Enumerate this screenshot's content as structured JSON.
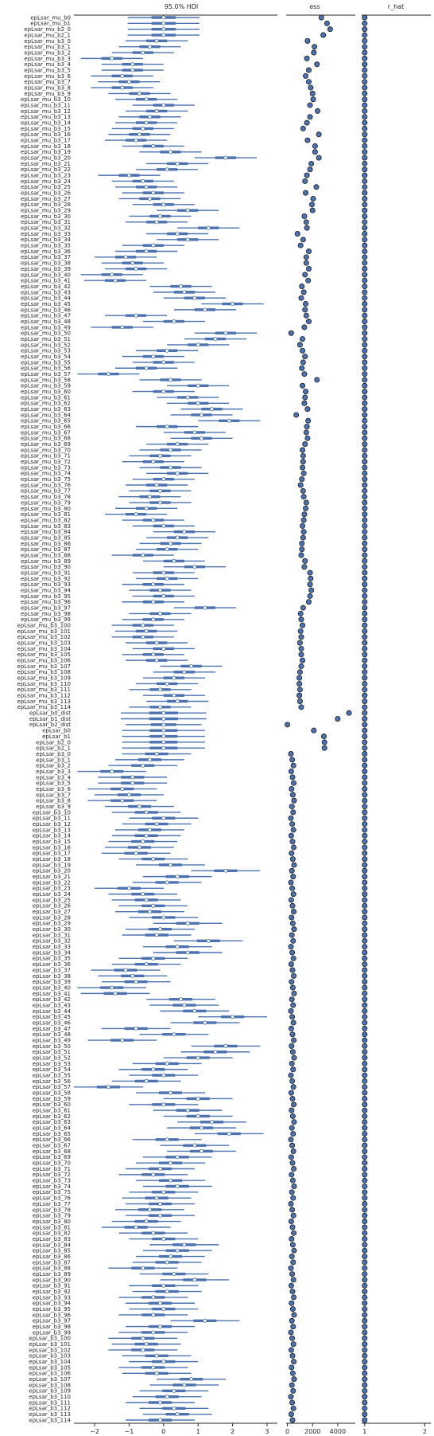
{
  "panels": {
    "hdi_title": "95.0% HDI",
    "ess_title": "ess",
    "rhat_title": "r_hat"
  },
  "axes": {
    "hdi": {
      "xlim": [
        -2.6,
        3.3
      ],
      "ticks": [
        -2,
        -1,
        0,
        1,
        2,
        3
      ]
    },
    "ess": {
      "xlim": [
        -100,
        5400
      ],
      "ticks": [
        0,
        2000,
        4000
      ]
    },
    "rhat": {
      "xlim": [
        0.95,
        2.1
      ],
      "ticks": [
        1,
        2
      ]
    }
  },
  "colors": {
    "interval": "#4c72b0",
    "point": "#4c72b0",
    "mean_marker": "#ffffff"
  },
  "chart_data": {
    "type": "forest",
    "title": "95.0% HDI",
    "grid": false,
    "labels": [
      "epLsar_mu_b0",
      "epLsar_mu_b1",
      "epLsar_mu_b2_0",
      "epLsar_mu_b2_1",
      "epLsar_mu_b3_0",
      "epLsar_mu_b3_1",
      "epLsar_mu_b3_2",
      "epLsar_mu_b3_3",
      "epLsar_mu_b3_4",
      "epLsar_mu_b3_5",
      "epLsar_mu_b3_6",
      "epLsar_mu_b3_7",
      "epLsar_mu_b3_8",
      "epLsar_mu_b3_9",
      "epLsar_mu_b3_10",
      "epLsar_mu_b3_11",
      "epLsar_mu_b3_12",
      "epLsar_mu_b3_13",
      "epLsar_mu_b3_14",
      "epLsar_mu_b3_15",
      "epLsar_mu_b3_16",
      "epLsar_mu_b3_17",
      "epLsar_mu_b3_18",
      "epLsar_mu_b3_19",
      "epLsar_mu_b3_20",
      "epLsar_mu_b3_21",
      "epLsar_mu_b3_22",
      "epLsar_mu_b3_23",
      "epLsar_mu_b3_24",
      "epLsar_mu_b3_25",
      "epLsar_mu_b3_26",
      "epLsar_mu_b3_27",
      "epLsar_mu_b3_28",
      "epLsar_mu_b3_29",
      "epLsar_mu_b3_30",
      "epLsar_mu_b3_31",
      "epLsar_mu_b3_32",
      "epLsar_mu_b3_33",
      "epLsar_mu_b3_34",
      "epLsar_mu_b3_35",
      "epLsar_mu_b3_36",
      "epLsar_mu_b3_37",
      "epLsar_mu_b3_38",
      "epLsar_mu_b3_39",
      "epLsar_mu_b3_40",
      "epLsar_mu_b3_41",
      "epLsar_mu_b3_42",
      "epLsar_mu_b3_43",
      "epLsar_mu_b3_44",
      "epLsar_mu_b3_45",
      "epLsar_mu_b3_46",
      "epLsar_mu_b3_47",
      "epLsar_mu_b3_48",
      "epLsar_mu_b3_49",
      "epLsar_mu_b3_50",
      "epLsar_mu_b3_51",
      "epLsar_mu_b3_52",
      "epLsar_mu_b3_53",
      "epLsar_mu_b3_54",
      "epLsar_mu_b3_55",
      "epLsar_mu_b3_56",
      "epLsar_mu_b3_57",
      "epLsar_mu_b3_58",
      "epLsar_mu_b3_59",
      "epLsar_mu_b3_60",
      "epLsar_mu_b3_61",
      "epLsar_mu_b3_62",
      "epLsar_mu_b3_63",
      "epLsar_mu_b3_64",
      "epLsar_mu_b3_65",
      "epLsar_mu_b3_66",
      "epLsar_mu_b3_67",
      "epLsar_mu_b3_68",
      "epLsar_mu_b3_69",
      "epLsar_mu_b3_70",
      "epLsar_mu_b3_71",
      "epLsar_mu_b3_72",
      "epLsar_mu_b3_73",
      "epLsar_mu_b3_74",
      "epLsar_mu_b3_75",
      "epLsar_mu_b3_76",
      "epLsar_mu_b3_77",
      "epLsar_mu_b3_78",
      "epLsar_mu_b3_79",
      "epLsar_mu_b3_80",
      "epLsar_mu_b3_81",
      "epLsar_mu_b3_82",
      "epLsar_mu_b3_83",
      "epLsar_mu_b3_84",
      "epLsar_mu_b3_85",
      "epLsar_mu_b3_86",
      "epLsar_mu_b3_87",
      "epLsar_mu_b3_88",
      "epLsar_mu_b3_89",
      "epLsar_mu_b3_90",
      "epLsar_mu_b3_91",
      "epLsar_mu_b3_92",
      "epLsar_mu_b3_93",
      "epLsar_mu_b3_94",
      "epLsar_mu_b3_95",
      "epLsar_mu_b3_96",
      "epLsar_mu_b3_97",
      "epLsar_mu_b3_98",
      "epLsar_mu_b3_99",
      "epLsar_mu_b3_100",
      "epLsar_mu_b3_101",
      "epLsar_mu_b3_102",
      "epLsar_mu_b3_103",
      "epLsar_mu_b3_104",
      "epLsar_mu_b3_105",
      "epLsar_mu_b3_106",
      "epLsar_mu_b3_107",
      "epLsar_mu_b3_108",
      "epLsar_mu_b3_109",
      "epLsar_mu_b3_110",
      "epLsar_mu_b3_111",
      "epLsar_mu_b3_112",
      "epLsar_mu_b3_113",
      "epLsar_mu_b3_114",
      "epLsar_b0_dist",
      "epLsar_b1_dist",
      "epLsar_b2_dist",
      "epLsar_b0",
      "epLsar_b1",
      "epLsar_b2_0",
      "epLsar_b2_1",
      "epLsar_b3_0",
      "epLsar_b3_1",
      "epLsar_b3_2",
      "epLsar_b3_3",
      "epLsar_b3_4",
      "epLsar_b3_5",
      "epLsar_b3_6",
      "epLsar_b3_7",
      "epLsar_b3_8",
      "epLsar_b3_9",
      "epLsar_b3_10",
      "epLsar_b3_11",
      "epLsar_b3_12",
      "epLsar_b3_13",
      "epLsar_b3_14",
      "epLsar_b3_15",
      "epLsar_b3_16",
      "epLsar_b3_17",
      "epLsar_b3_18",
      "epLsar_b3_19",
      "epLsar_b3_20",
      "epLsar_b3_21",
      "epLsar_b3_22",
      "epLsar_b3_23",
      "epLsar_b3_24",
      "epLsar_b3_25",
      "epLsar_b3_26",
      "epLsar_b3_27",
      "epLsar_b3_28",
      "epLsar_b3_29",
      "epLsar_b3_30",
      "epLsar_b3_31",
      "epLsar_b3_32",
      "epLsar_b3_33",
      "epLsar_b3_34",
      "epLsar_b3_35",
      "epLsar_b3_36",
      "epLsar_b3_37",
      "epLsar_b3_38",
      "epLsar_b3_39",
      "epLsar_b3_40",
      "epLsar_b3_41",
      "epLsar_b3_42",
      "epLsar_b3_43",
      "epLsar_b3_44",
      "epLsar_b3_45",
      "epLsar_b3_46",
      "epLsar_b3_47",
      "epLsar_b3_48",
      "epLsar_b3_49",
      "epLsar_b3_50",
      "epLsar_b3_51",
      "epLsar_b3_52",
      "epLsar_b3_53",
      "epLsar_b3_54",
      "epLsar_b3_55",
      "epLsar_b3_56",
      "epLsar_b3_57",
      "epLsar_b3_58",
      "epLsar_b3_59",
      "epLsar_b3_60",
      "epLsar_b3_61",
      "epLsar_b3_62",
      "epLsar_b3_63",
      "epLsar_b3_64",
      "epLsar_b3_65",
      "epLsar_b3_66",
      "epLsar_b3_67",
      "epLsar_b3_68",
      "epLsar_b3_69",
      "epLsar_b3_70",
      "epLsar_b3_71",
      "epLsar_b3_72",
      "epLsar_b3_73",
      "epLsar_b3_74",
      "epLsar_b3_75",
      "epLsar_b3_76",
      "epLsar_b3_77",
      "epLsar_b3_78",
      "epLsar_b3_79",
      "epLsar_b3_80",
      "epLsar_b3_81",
      "epLsar_b3_82",
      "epLsar_b3_83",
      "epLsar_b3_84",
      "epLsar_b3_85",
      "epLsar_b3_86",
      "epLsar_b3_87",
      "epLsar_b3_88",
      "epLsar_b3_89",
      "epLsar_b3_90",
      "epLsar_b3_91",
      "epLsar_b3_92",
      "epLsar_b3_93",
      "epLsar_b3_94",
      "epLsar_b3_95",
      "epLsar_b3_96",
      "epLsar_b3_97",
      "epLsar_b3_98",
      "epLsar_b3_99",
      "epLsar_b3_100",
      "epLsar_b3_101",
      "epLsar_b3_102",
      "epLsar_b3_103",
      "epLsar_b3_104",
      "epLsar_b3_105",
      "epLsar_b3_106",
      "epLsar_b3_107",
      "epLsar_b3_108",
      "epLsar_b3_109",
      "epLsar_b3_110",
      "epLsar_b3_111",
      "epLsar_b3_112",
      "epLsar_b3_113",
      "epLsar_b3_114"
    ],
    "b3_means": [
      -0.2,
      -0.4,
      -0.6,
      -1.5,
      -0.9,
      -0.9,
      -1.2,
      -1.0,
      -1.2,
      -0.7,
      -0.5,
      0.0,
      -0.2,
      -0.4,
      -0.5,
      -0.6,
      -0.7,
      -0.8,
      -0.3,
      0.2,
      1.8,
      0.4,
      0.1,
      -1.0,
      -0.6,
      -0.5,
      -0.3,
      -0.4,
      0.0,
      0.7,
      -0.1,
      -0.2,
      1.3,
      0.4,
      0.7,
      -0.3,
      -0.5,
      -1.1,
      -0.9,
      -0.8,
      -1.5,
      -1.4,
      0.5,
      0.6,
      0.9,
      2.0,
      1.2,
      -0.8,
      0.3,
      -1.2,
      1.8,
      1.5,
      1.0,
      0.1,
      -0.3,
      0.0,
      -0.5,
      -1.6,
      0.2,
      1.0,
      0.0,
      0.7,
      1.0,
      1.4,
      1.1,
      1.9,
      0.1,
      0.9,
      1.1,
      0.4,
      0.2,
      -0.1,
      -0.3,
      0.2,
      0.4,
      0.0,
      -0.2,
      -0.1,
      -0.4,
      -0.1,
      -0.5,
      -0.8,
      -0.3,
      0.0,
      0.6,
      0.4,
      0.2,
      0.1,
      -0.6,
      0.3,
      0.9,
      0.0,
      0.1,
      -0.3,
      -0.1,
      0.0,
      -0.3,
      1.2,
      -0.1,
      -0.3,
      -0.6,
      -0.5,
      -0.6,
      -0.2,
      0.0,
      -0.3,
      -0.2,
      0.8,
      0.6,
      0.3,
      0.1,
      -0.1,
      0.3,
      0.4,
      -0.1
    ],
    "b3_ess": [
      1600,
      2150,
      2100,
      1550,
      2350,
      1700,
      1450,
      1700,
      1850,
      2000,
      2050,
      1800,
      2400,
      1800,
      1550,
      1250,
      2500,
      1600,
      2200,
      2200,
      2500,
      1900,
      1800,
      1550,
      1400,
      2300,
      1450,
      2050,
      1950,
      2000,
      1350,
      1500,
      1550,
      800,
      1250,
      1050,
      1700,
      1500,
      1500,
      1700,
      1400,
      1650,
      1150,
      1300,
      1100,
      1450,
      1400,
      1500,
      1700,
      1350,
      300,
      1200,
      1000,
      1200,
      1400,
      1250,
      1150,
      1350,
      2350,
      1200,
      1450,
      1400,
      1350,
      1600,
      700,
      1650,
      1550,
      1500,
      1600,
      1400,
      1200,
      1250,
      1250,
      1200,
      1300,
      1150,
      1050,
      1250,
      1300,
      1500,
      1450,
      1350,
      1300,
      1200,
      1300,
      1250,
      1150,
      1150,
      1100,
      1400,
      1350,
      1800,
      1850,
      1800,
      1900,
      1800,
      1700,
      1250,
      1050,
      1100,
      1200,
      1050,
      1100,
      1000,
      1100,
      1100,
      1200,
      1100,
      1000,
      950,
      950,
      1000,
      950,
      1000,
      1100
    ]
  }
}
